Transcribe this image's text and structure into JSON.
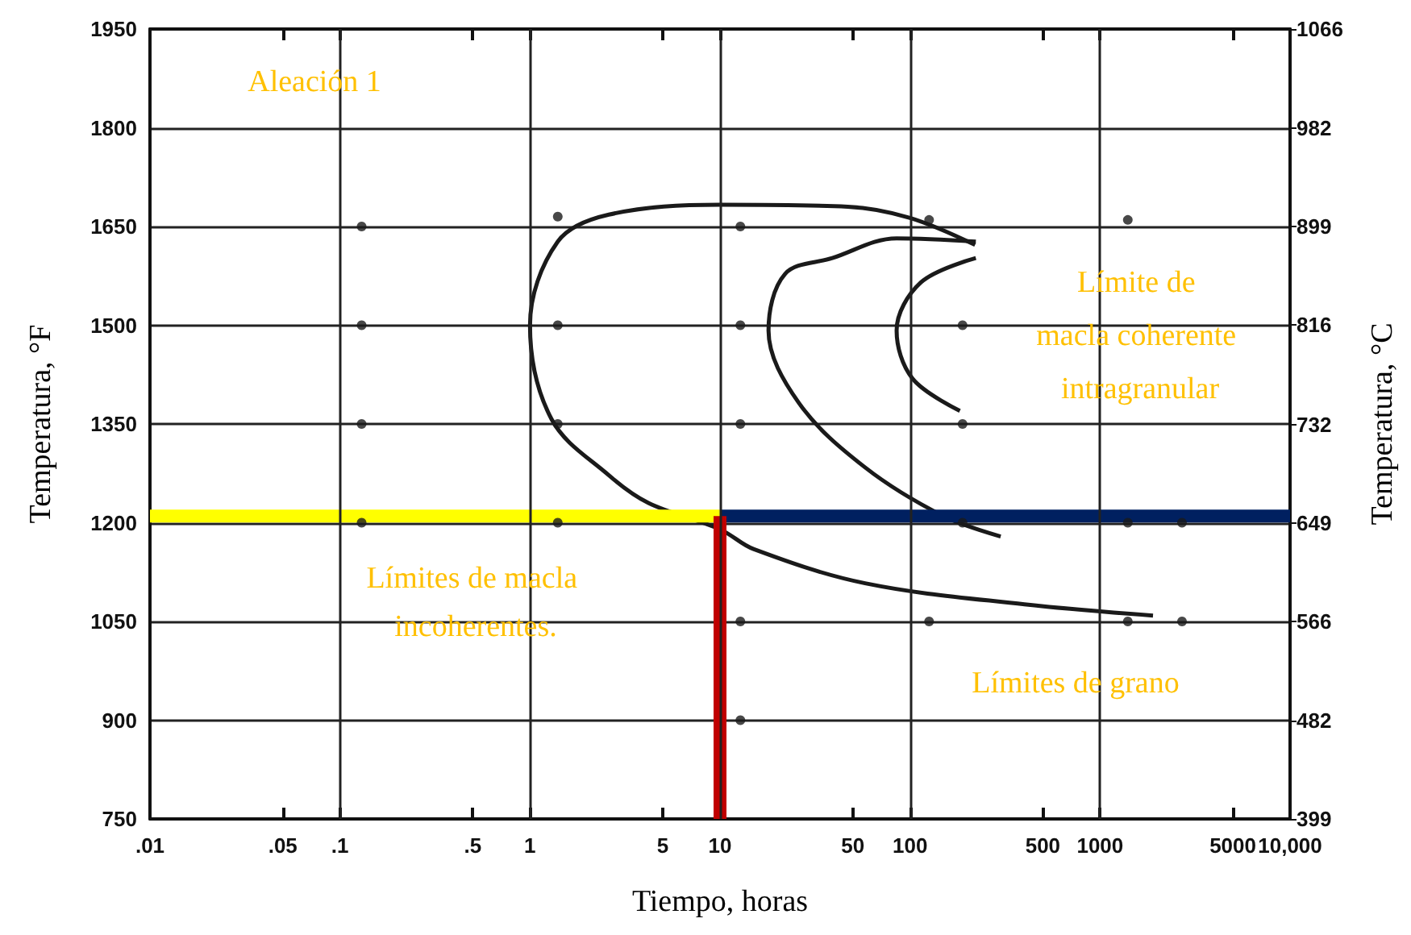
{
  "chart_data": {
    "type": "line",
    "xlabel": "Tiempo, horas",
    "ylabel": "Temperatura, °F",
    "y2label": "Temperatura, °C",
    "log": "x",
    "grid": true,
    "xlim": [
      0.01,
      10000
    ],
    "xticks": [
      {
        "value": 0.01,
        "label": ".01"
      },
      {
        "value": 0.05,
        "label": ".05"
      },
      {
        "value": 0.1,
        "label": ".1"
      },
      {
        "value": 0.5,
        "label": ".5"
      },
      1,
      5,
      10,
      50,
      100,
      500,
      1000,
      5000,
      {
        "value": 10000,
        "label": "10,000"
      }
    ],
    "ylim": [
      750,
      1950
    ],
    "yticks": [
      750,
      900,
      1050,
      1200,
      1350,
      1500,
      1650,
      1800,
      1950
    ],
    "y2lim": [
      399,
      1066
    ],
    "y2ticks": [
      399,
      482,
      566,
      649,
      732,
      816,
      899,
      982,
      1066
    ],
    "annotations": [
      "Aleación 1",
      "Límite de macla coherente intragranular",
      "Límites de macla incoherentes.",
      "Límites de grano"
    ],
    "series": [
      {
        "type": "scatter",
        "color": "#1a1a1a",
        "x": [
          0.13,
          0.13,
          0.13,
          0.13,
          1.4,
          1.4,
          1.4,
          1.4,
          12.8,
          12.8,
          12.8,
          12.8,
          12.8,
          126,
          126,
          189,
          189,
          189,
          1400,
          1400,
          1400,
          2700,
          2700
        ],
        "values": [
          1650,
          1500,
          1350,
          1200,
          1665,
          1500,
          1350,
          1200,
          1650,
          1500,
          1350,
          1050,
          900,
          1660,
          1050,
          1500,
          1350,
          1200,
          1660,
          1200,
          1050,
          1200,
          1050
        ]
      },
      {
        "color": "#1a1a1a",
        "x": [
          220,
          100,
          47,
          10,
          2.6,
          1.4,
          1,
          1.3,
          2.6,
          4.2,
          10,
          15,
          58,
          400,
          1900
        ],
        "values": [
          1622,
          1663,
          1680,
          1683,
          1668,
          1627,
          1500,
          1357,
          1272,
          1230,
          1190,
          1160,
          1108,
          1076,
          1059
        ]
      },
      {
        "color": "#1a1a1a",
        "x": [
          222,
          85,
          39,
          22,
          18,
          26,
          58,
          150,
          300
        ],
        "values": [
          1627,
          1632,
          1602,
          1578,
          1492,
          1382,
          1284,
          1210,
          1179
        ]
      },
      {
        "color": "#1a1a1a",
        "x": [
          222,
          114,
          85,
          103,
          183
        ],
        "values": [
          1602,
          1565,
          1492,
          1419,
          1370
        ]
      },
      {
        "color": "#ffff00",
        "x": [
          0.01,
          10
        ],
        "values": [
          1210,
          1210
        ]
      },
      {
        "color": "#002060",
        "x": [
          10,
          10000
        ],
        "values": [
          1210,
          1210
        ]
      },
      {
        "color": "#c00000",
        "x": [
          10,
          10
        ],
        "values": [
          1210,
          750
        ]
      }
    ]
  }
}
